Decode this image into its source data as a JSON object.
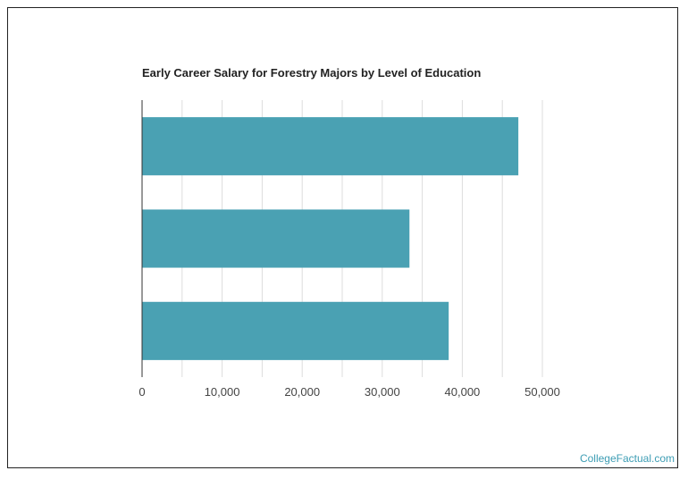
{
  "chart_data": {
    "type": "bar",
    "orientation": "horizontal",
    "title": "Early Career Salary for Forestry Majors by Level of Education",
    "xlabel": "",
    "ylabel": "",
    "categories": [
      "",
      "",
      ""
    ],
    "values": [
      47000,
      33400,
      38300
    ],
    "xlim": [
      0,
      50000
    ],
    "xticks": [
      0,
      10000,
      20000,
      30000,
      40000,
      50000
    ],
    "xtick_labels": [
      "0",
      "10,000",
      "20,000",
      "30,000",
      "40,000",
      "50,000"
    ],
    "grid": true,
    "bar_color": "#4aa1b3",
    "legend": "none"
  },
  "watermark": "CollegeFactual.com"
}
